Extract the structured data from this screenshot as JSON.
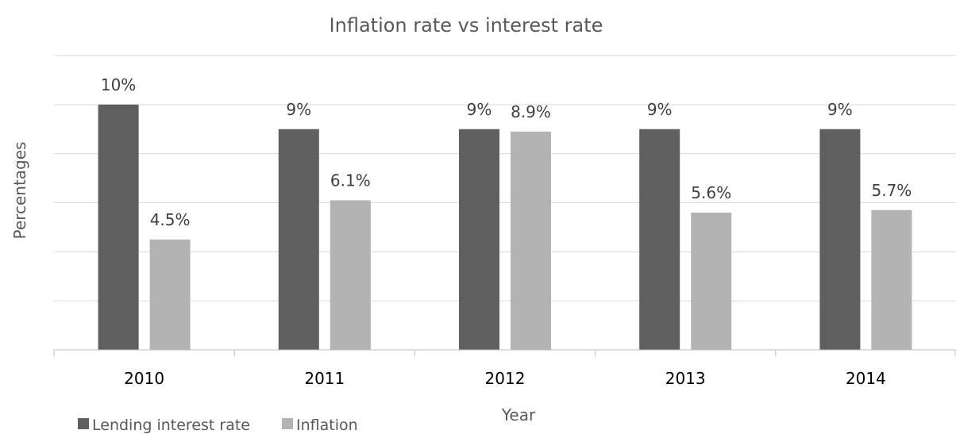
{
  "chart_data": {
    "type": "bar",
    "title": "Inflation rate vs interest rate",
    "xlabel": "Year",
    "ylabel": "Percentages",
    "categories": [
      "2010",
      "2011",
      "2012",
      "2013",
      "2014"
    ],
    "series": [
      {
        "name": "Lending interest rate",
        "color": "#5f5f5f",
        "values": [
          10,
          9,
          9,
          9,
          9
        ],
        "labels": [
          "10%",
          "9%",
          "9%",
          "9%",
          "9%"
        ]
      },
      {
        "name": "Inflation",
        "color": "#b3b3b3",
        "values": [
          4.5,
          6.1,
          8.9,
          5.6,
          5.7
        ],
        "labels": [
          "4.5%",
          "6.1%",
          "8.9%",
          "5.6%",
          "5.7%"
        ]
      }
    ],
    "ylim": [
      0,
      12
    ],
    "grid": true,
    "y_tick_labels_shown": false,
    "legend_position": "bottom-left"
  }
}
